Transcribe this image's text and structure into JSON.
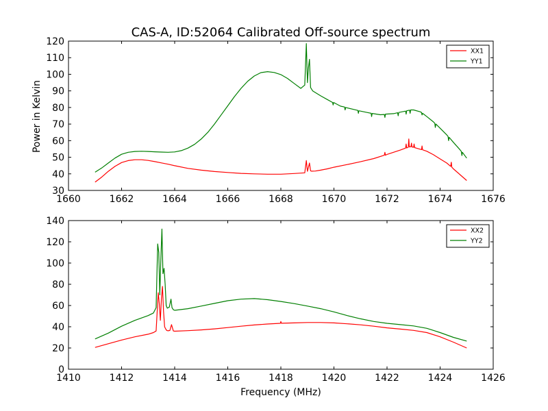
{
  "chart_data": [
    {
      "type": "line",
      "title": "CAS-A, ID:52064 Calibrated Off-source spectrum",
      "xlabel": "",
      "ylabel": "Power in Kelvin",
      "xlim": [
        1660,
        1676
      ],
      "ylim": [
        30,
        120
      ],
      "xticks": [
        1660,
        1662,
        1664,
        1666,
        1668,
        1670,
        1672,
        1674,
        1676
      ],
      "yticks": [
        30,
        40,
        50,
        60,
        70,
        80,
        90,
        100,
        110,
        120
      ],
      "legend_position": "top-right",
      "grid": false,
      "series": [
        {
          "name": "XX1",
          "color": "#ff0000",
          "x": [
            1661.0,
            1661.25,
            1661.5,
            1661.75,
            1662.0,
            1662.25,
            1662.5,
            1662.75,
            1663.0,
            1663.25,
            1663.5,
            1663.75,
            1664.0,
            1664.5,
            1665.0,
            1665.5,
            1666.0,
            1666.5,
            1667.0,
            1667.5,
            1668.0,
            1668.5,
            1668.9,
            1668.96,
            1669.0,
            1669.04,
            1669.08,
            1669.12,
            1669.16,
            1669.3,
            1669.5,
            1669.75,
            1670.0,
            1670.5,
            1671.0,
            1671.5,
            1671.9,
            1671.92,
            1671.94,
            1672.0,
            1672.5,
            1672.7,
            1672.72,
            1672.74,
            1672.8,
            1672.82,
            1672.84,
            1672.9,
            1672.92,
            1672.94,
            1673.0,
            1673.02,
            1673.04,
            1673.1,
            1673.3,
            1673.32,
            1673.34,
            1673.5,
            1673.75,
            1674.0,
            1674.25,
            1674.4,
            1674.42,
            1674.44,
            1674.5,
            1674.75,
            1675.0
          ],
          "y": [
            35.0,
            38.0,
            41.5,
            44.5,
            46.8,
            48.0,
            48.5,
            48.5,
            48.1,
            47.4,
            46.6,
            45.8,
            44.9,
            43.3,
            42.2,
            41.4,
            40.8,
            40.3,
            40.0,
            39.8,
            39.8,
            40.2,
            40.6,
            48.0,
            41.5,
            44.0,
            46.5,
            41.8,
            41.6,
            41.7,
            42.2,
            43.0,
            44.0,
            45.6,
            47.3,
            49.2,
            51.2,
            53.0,
            51.2,
            51.7,
            54.3,
            55.5,
            58.0,
            55.6,
            56.0,
            61.0,
            56.2,
            56.4,
            58.5,
            56.2,
            56.0,
            58.0,
            55.8,
            55.5,
            54.6,
            56.8,
            54.5,
            53.6,
            51.5,
            49.0,
            46.5,
            44.5,
            47.0,
            44.0,
            43.0,
            39.5,
            36.0
          ]
        },
        {
          "name": "YY1",
          "color": "#007f00",
          "x": [
            1661.0,
            1661.25,
            1661.5,
            1661.75,
            1662.0,
            1662.25,
            1662.5,
            1662.75,
            1663.0,
            1663.25,
            1663.5,
            1663.75,
            1664.0,
            1664.25,
            1664.5,
            1664.75,
            1665.0,
            1665.25,
            1665.5,
            1665.75,
            1666.0,
            1666.25,
            1666.5,
            1666.75,
            1667.0,
            1667.25,
            1667.5,
            1667.75,
            1668.0,
            1668.25,
            1668.5,
            1668.75,
            1668.9,
            1668.96,
            1669.0,
            1669.04,
            1669.08,
            1669.12,
            1669.2,
            1669.5,
            1669.75,
            1669.95,
            1669.97,
            1669.99,
            1670.25,
            1670.4,
            1670.42,
            1670.44,
            1670.75,
            1670.9,
            1670.92,
            1670.94,
            1671.25,
            1671.4,
            1671.42,
            1671.44,
            1671.75,
            1671.9,
            1671.92,
            1671.94,
            1672.25,
            1672.4,
            1672.42,
            1672.44,
            1672.7,
            1672.72,
            1672.74,
            1672.85,
            1672.87,
            1672.89,
            1673.0,
            1673.25,
            1673.3,
            1673.32,
            1673.34,
            1673.5,
            1673.75,
            1673.8,
            1673.82,
            1673.84,
            1674.0,
            1674.25,
            1674.3,
            1674.32,
            1674.34,
            1674.5,
            1674.75,
            1674.8,
            1674.82,
            1674.84,
            1675.0
          ],
          "y": [
            41.0,
            43.5,
            46.5,
            49.5,
            51.8,
            53.0,
            53.5,
            53.6,
            53.5,
            53.3,
            53.1,
            53.0,
            53.2,
            54.0,
            55.5,
            57.8,
            61.0,
            65.0,
            70.0,
            75.5,
            81.0,
            86.5,
            91.5,
            95.8,
            99.0,
            101.0,
            101.6,
            101.1,
            99.8,
            97.5,
            94.5,
            91.5,
            93.5,
            118.5,
            95.0,
            104.0,
            109.0,
            92.0,
            90.0,
            87.0,
            84.8,
            83.0,
            81.5,
            83.0,
            80.8,
            80.3,
            78.5,
            80.0,
            78.8,
            78.2,
            76.5,
            78.0,
            77.0,
            76.5,
            74.5,
            76.4,
            75.6,
            75.8,
            74.0,
            76.0,
            76.3,
            76.8,
            75.0,
            77.0,
            77.8,
            76.0,
            78.0,
            78.4,
            76.5,
            78.5,
            78.5,
            77.4,
            77.0,
            75.5,
            76.5,
            74.5,
            71.3,
            70.5,
            68.0,
            70.0,
            67.5,
            63.5,
            62.5,
            60.0,
            62.0,
            59.0,
            54.5,
            53.5,
            51.0,
            53.0,
            49.5
          ]
        }
      ]
    },
    {
      "type": "line",
      "title": "",
      "xlabel": "Frequency (MHz)",
      "ylabel": "",
      "xlim": [
        1410,
        1426
      ],
      "ylim": [
        0,
        140
      ],
      "xticks": [
        1410,
        1412,
        1414,
        1416,
        1418,
        1420,
        1422,
        1424,
        1426
      ],
      "yticks": [
        0,
        20,
        40,
        60,
        80,
        100,
        120,
        140
      ],
      "legend_position": "top-right",
      "grid": false,
      "series": [
        {
          "name": "XX2",
          "color": "#ff0000",
          "x": [
            1411.0,
            1411.5,
            1412.0,
            1412.5,
            1413.0,
            1413.2,
            1413.3,
            1413.38,
            1413.42,
            1413.46,
            1413.5,
            1413.54,
            1413.58,
            1413.62,
            1413.66,
            1413.7,
            1413.75,
            1413.82,
            1413.88,
            1413.95,
            1414.0,
            1414.5,
            1415.0,
            1415.5,
            1416.0,
            1416.5,
            1417.0,
            1417.5,
            1417.98,
            1418.0,
            1418.02,
            1418.5,
            1419.0,
            1419.5,
            1420.0,
            1420.5,
            1421.0,
            1421.5,
            1422.0,
            1422.5,
            1423.0,
            1423.5,
            1424.0,
            1424.5,
            1425.0
          ],
          "y": [
            20.5,
            24.0,
            27.5,
            30.5,
            33.0,
            34.5,
            36.0,
            72.0,
            62.0,
            46.0,
            66.0,
            78.0,
            55.0,
            40.0,
            38.0,
            36.5,
            36.2,
            36.5,
            42.0,
            36.0,
            35.8,
            36.3,
            37.0,
            38.0,
            39.2,
            40.5,
            41.7,
            42.6,
            43.2,
            45.0,
            43.3,
            43.6,
            44.0,
            44.0,
            43.6,
            42.8,
            41.8,
            40.5,
            39.0,
            37.8,
            36.6,
            34.5,
            30.5,
            25.5,
            20.0
          ]
        },
        {
          "name": "YY2",
          "color": "#007f00",
          "x": [
            1411.0,
            1411.5,
            1412.0,
            1412.5,
            1413.0,
            1413.2,
            1413.3,
            1413.36,
            1413.4,
            1413.44,
            1413.48,
            1413.52,
            1413.56,
            1413.6,
            1413.64,
            1413.68,
            1413.72,
            1413.8,
            1413.86,
            1413.9,
            1413.95,
            1414.0,
            1414.5,
            1415.0,
            1415.5,
            1416.0,
            1416.5,
            1417.0,
            1417.5,
            1418.0,
            1418.5,
            1419.0,
            1419.5,
            1420.0,
            1420.5,
            1421.0,
            1421.5,
            1422.0,
            1422.5,
            1423.0,
            1423.5,
            1424.0,
            1424.5,
            1425.0
          ],
          "y": [
            28.5,
            34.0,
            40.5,
            46.0,
            50.5,
            53.0,
            58.0,
            118.0,
            110.0,
            70.0,
            105.0,
            132.0,
            90.0,
            95.0,
            80.0,
            60.0,
            57.5,
            58.5,
            66.0,
            58.0,
            56.0,
            55.5,
            57.0,
            59.5,
            62.0,
            64.5,
            66.0,
            66.5,
            65.5,
            63.8,
            61.8,
            59.5,
            57.0,
            54.0,
            50.5,
            47.5,
            45.0,
            43.2,
            42.0,
            40.8,
            38.5,
            34.5,
            30.0,
            26.5
          ]
        }
      ]
    }
  ]
}
